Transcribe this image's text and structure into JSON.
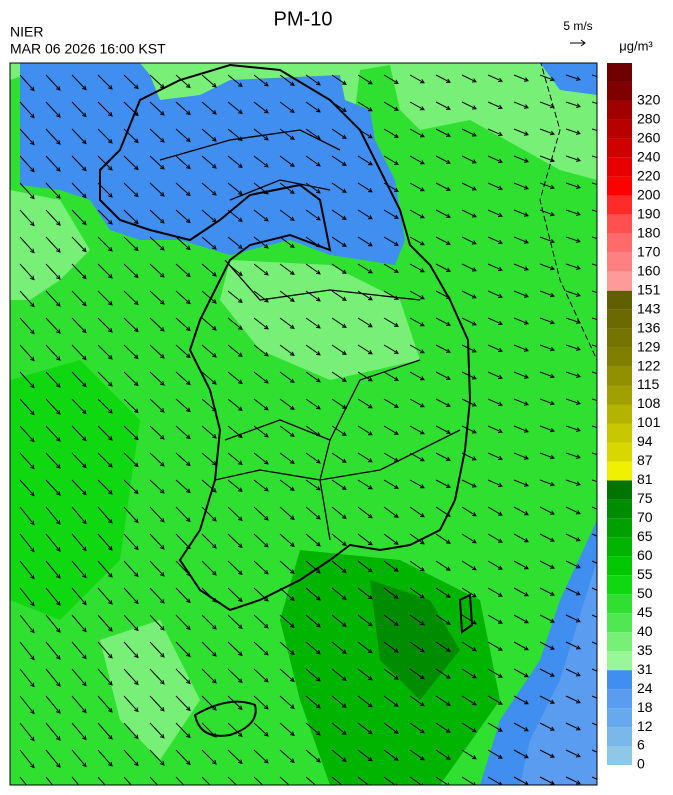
{
  "header": {
    "agency": "NIER",
    "title": "PM-10",
    "timestamp": "MAR 06 2026 16:00 KST",
    "wind_scale": "5 m/s"
  },
  "colorbar": {
    "unit": "μg/m³",
    "labels": [
      "0",
      "6",
      "12",
      "18",
      "24",
      "31",
      "35",
      "40",
      "45",
      "50",
      "55",
      "60",
      "65",
      "70",
      "75",
      "81",
      "87",
      "94",
      "101",
      "108",
      "115",
      "122",
      "129",
      "136",
      "143",
      "151",
      "160",
      "170",
      "180",
      "190",
      "200",
      "220",
      "240",
      "260",
      "280",
      "320"
    ],
    "colors": [
      "#8ec8e8",
      "#7ab8ea",
      "#68a8ec",
      "#5a9cf0",
      "#3f8ef0",
      "#98f898",
      "#78f078",
      "#50e850",
      "#30e030",
      "#10d810",
      "#00c800",
      "#00b400",
      "#00a000",
      "#008c00",
      "#007400",
      "#f0f000",
      "#d8d800",
      "#c8c800",
      "#b4b400",
      "#a0a000",
      "#909000",
      "#808000",
      "#747400",
      "#6a6a00",
      "#606000",
      "#ff9a9a",
      "#ff8080",
      "#ff6a6a",
      "#ff5050",
      "#ff2a2a",
      "#ff0000",
      "#e80000",
      "#d00000",
      "#b80000",
      "#a00000",
      "#800000",
      "#700000"
    ]
  }
}
